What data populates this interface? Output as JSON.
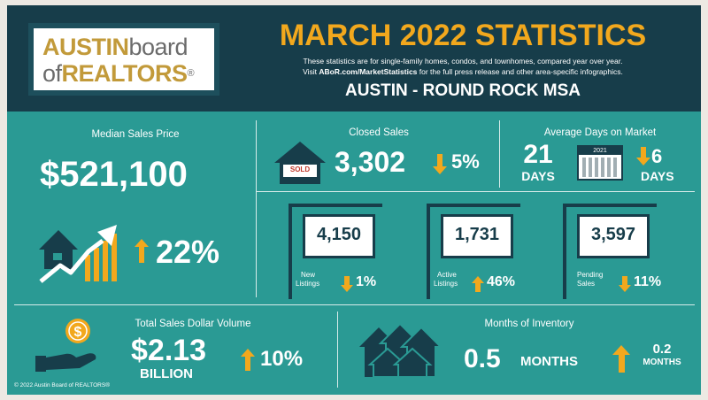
{
  "logo": {
    "line1_a": "AUSTIN",
    "line1_b": "board",
    "line2_a": "of",
    "line2_b": "REALTORS",
    "reg": "®"
  },
  "header": {
    "title": "MARCH 2022 STATISTICS",
    "note1": "These statistics are for single-family homes, condos, and townhomes, compared year over year.",
    "note2_prefix": "Visit ",
    "note2_link": "ABoR.com/MarketStatistics",
    "note2_suffix": " for the full press release and other area-specific infographics.",
    "region": "AUSTIN - ROUND ROCK MSA"
  },
  "median": {
    "label": "Median Sales Price",
    "value": "$521,100",
    "change": "22%",
    "direction": "up"
  },
  "closed": {
    "label": "Closed Sales",
    "sign_text": "SOLD",
    "value": "3,302",
    "change": "5%",
    "direction": "down"
  },
  "days": {
    "label": "Average Days on Market",
    "value": "21",
    "unit": "DAYS",
    "calendar_year": "2021",
    "change": "6",
    "change_unit": "DAYS",
    "direction": "down"
  },
  "new_listings": {
    "value": "4,150",
    "label_l1": "New",
    "label_l2": "Listings",
    "change": "1%",
    "direction": "down"
  },
  "active_listings": {
    "value": "1,731",
    "label_l1": "Active",
    "label_l2": "Listings",
    "change": "46%",
    "direction": "up"
  },
  "pending_sales": {
    "value": "3,597",
    "label_l1": "Pending",
    "label_l2": "Sales",
    "change": "11%",
    "direction": "down"
  },
  "volume": {
    "label": "Total Sales Dollar Volume",
    "value": "$2.13",
    "unit": "BILLION",
    "change": "10%",
    "direction": "up"
  },
  "inventory": {
    "label": "Months of Inventory",
    "value": "0.5",
    "unit": "MONTHS",
    "change": "0.2",
    "change_unit": "MONTHS",
    "direction": "up"
  },
  "footer": {
    "copyright": "© 2022 Austin Board of REALTORS®"
  },
  "colors": {
    "teal": "#2a9a94",
    "navy": "#173d4a",
    "orange": "#f2a81d",
    "white": "#ffffff"
  }
}
